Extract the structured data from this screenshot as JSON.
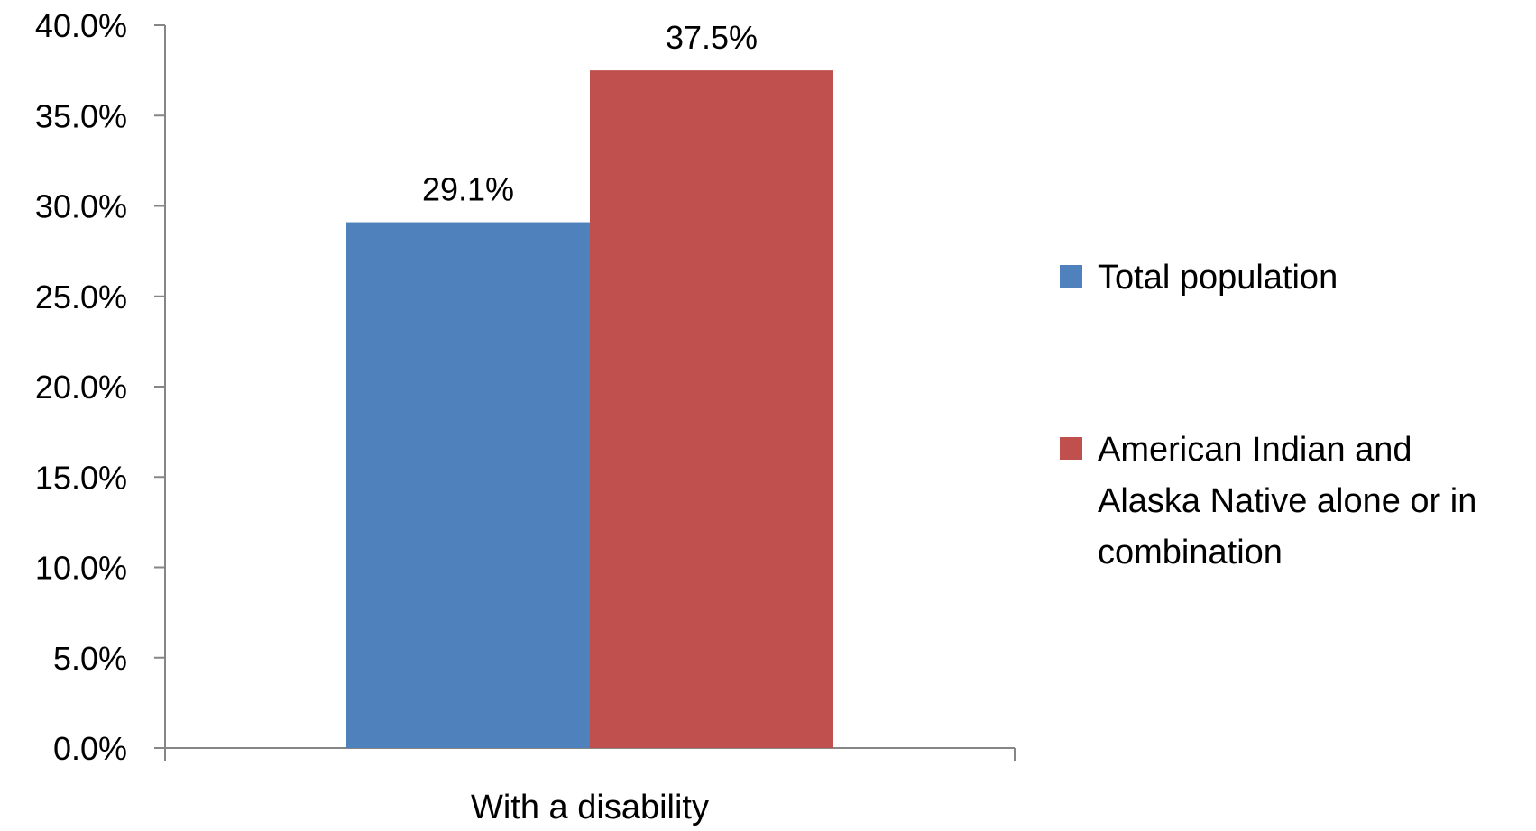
{
  "chart_data": {
    "type": "bar",
    "categories": [
      "With a disability"
    ],
    "series": [
      {
        "name": "Total population",
        "values": [
          29.1
        ],
        "labels": [
          "29.1%"
        ],
        "color": "#4F81BD"
      },
      {
        "name": "American Indian and Alaska Native alone or in combination",
        "legend_lines": [
          "American Indian and",
          "Alaska Native alone or in",
          "combination"
        ],
        "values": [
          37.5
        ],
        "labels": [
          "37.5%"
        ],
        "color": "#C0504D"
      }
    ],
    "yticks": [
      0,
      5,
      10,
      15,
      20,
      25,
      30,
      35,
      40
    ],
    "ytick_labels": [
      "0.0%",
      "5.0%",
      "10.0%",
      "15.0%",
      "20.0%",
      "25.0%",
      "30.0%",
      "35.0%",
      "40.0%"
    ],
    "ylim": [
      0,
      40
    ],
    "grid": false,
    "legend_position": "right"
  }
}
